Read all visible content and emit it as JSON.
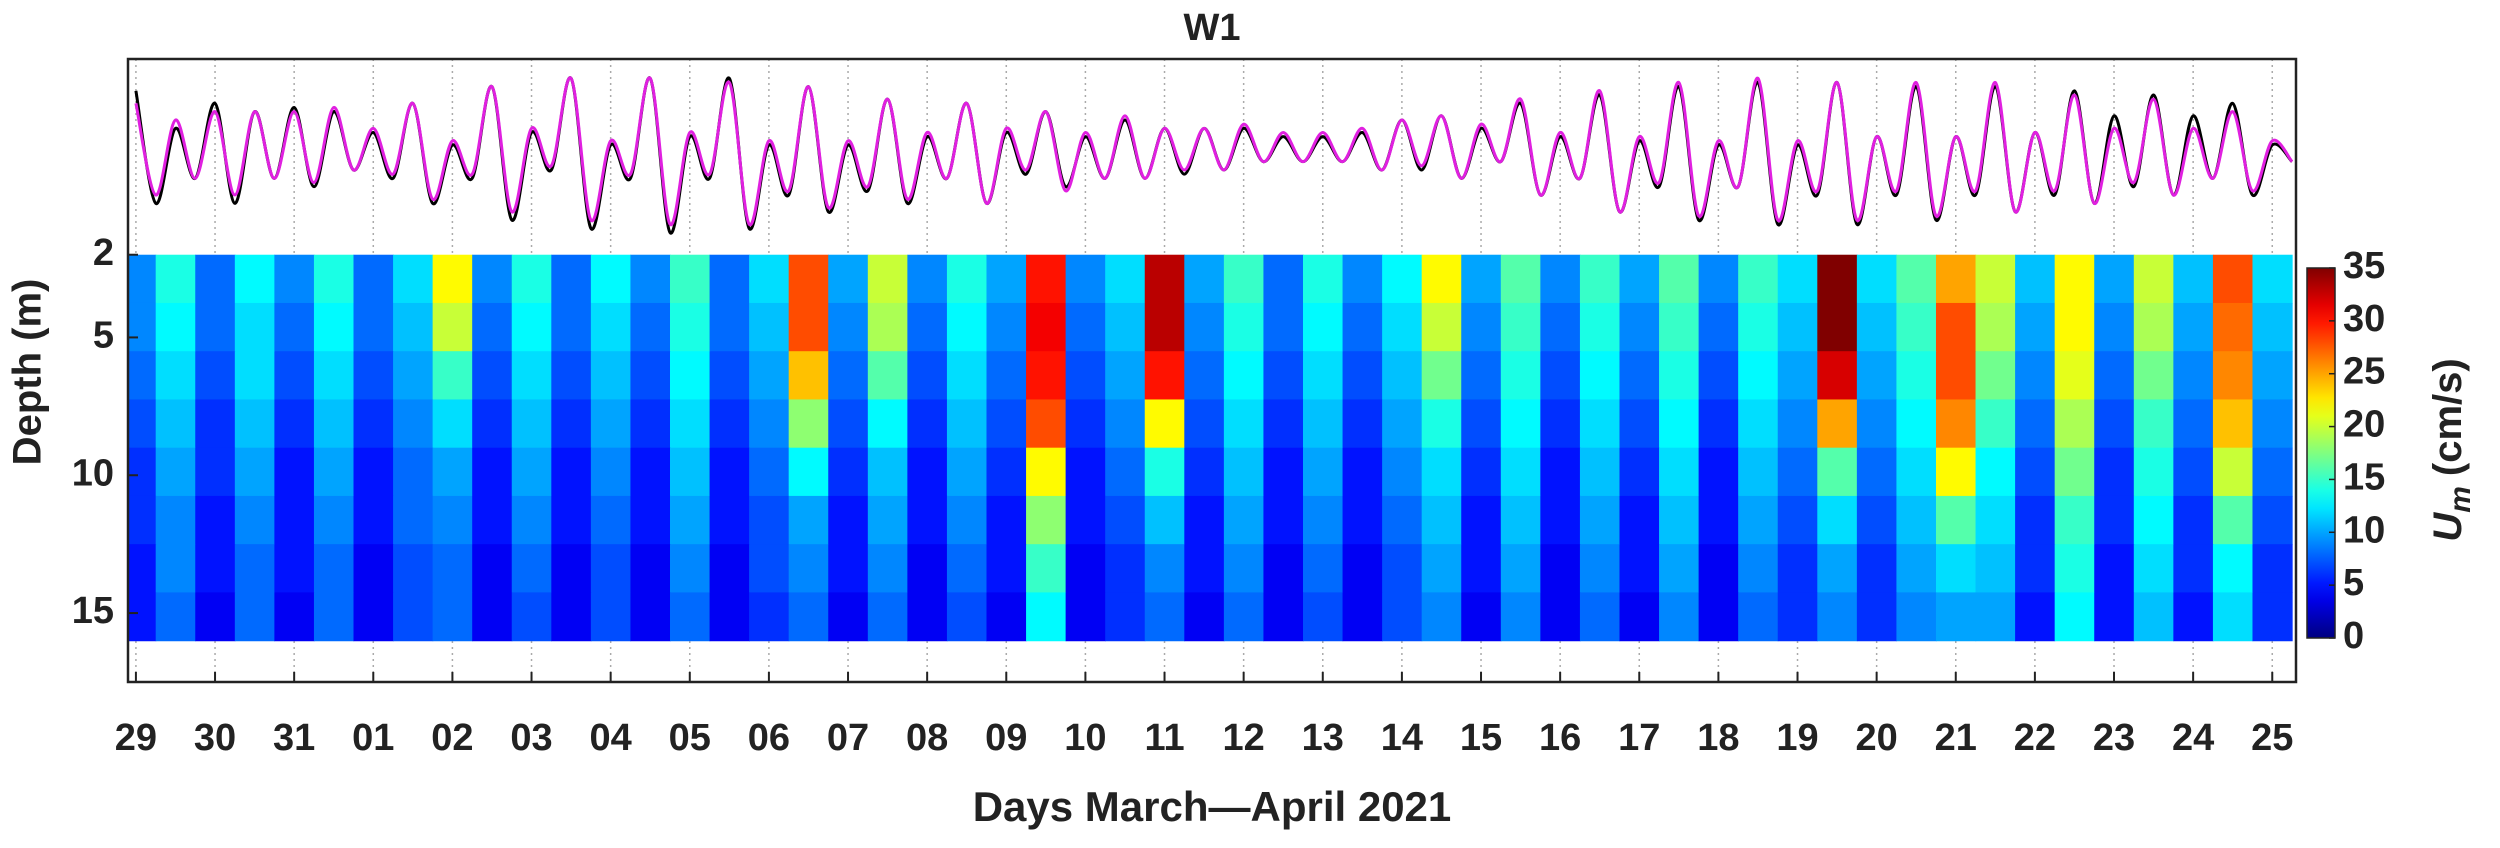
{
  "chart_data": [
    {
      "type": "line",
      "title": "W1",
      "x": [
        0,
        0.25,
        0.5,
        0.75,
        1,
        1.25,
        1.5,
        1.75,
        2,
        2.25,
        2.5,
        2.75,
        3,
        3.25,
        3.5,
        3.75,
        4,
        4.25,
        4.5,
        4.75,
        5,
        5.25,
        5.5,
        5.75,
        6,
        6.25,
        6.5,
        6.75,
        7,
        7.25,
        7.5,
        7.75,
        8,
        8.25,
        8.5,
        8.75,
        9,
        9.25,
        9.5,
        9.75,
        10,
        10.25,
        10.5,
        10.75,
        11,
        11.25,
        11.5,
        11.75,
        12,
        12.25,
        12.5,
        12.75,
        13,
        13.25,
        13.5,
        13.75,
        14,
        14.25,
        14.5,
        14.75,
        15,
        15.25,
        15.5,
        15.75,
        16,
        16.25,
        16.5,
        16.75,
        17,
        17.25,
        17.5,
        17.75,
        18,
        18.25,
        18.5,
        18.75,
        19,
        19.25,
        19.5,
        19.75,
        20,
        20.25,
        20.5,
        20.75,
        21,
        21.25,
        21.5,
        21.75,
        22,
        22.25,
        22.5,
        22.75,
        23,
        23.25,
        23.5,
        23.75,
        24,
        24.25,
        24.5,
        24.75,
        25,
        25.25,
        25.5,
        25.75,
        26,
        26.25,
        26.5,
        26.75,
        27,
        27.25
      ],
      "xlim": [
        -0.1,
        27.3
      ],
      "ylim": [
        -1.1,
        1.0
      ],
      "series": [
        {
          "color": "#000000",
          "values": [
            0.75,
            -0.6,
            0.3,
            -0.3,
            0.6,
            -0.6,
            0.5,
            -0.3,
            0.55,
            -0.4,
            0.5,
            -0.2,
            0.25,
            -0.3,
            0.6,
            -0.6,
            0.1,
            -0.3,
            0.8,
            -0.8,
            0.25,
            -0.2,
            0.9,
            -0.9,
            0.1,
            -0.3,
            0.9,
            -0.95,
            0.2,
            -0.3,
            0.9,
            -0.9,
            0.1,
            -0.5,
            0.8,
            -0.7,
            0.1,
            -0.45,
            0.65,
            -0.6,
            0.2,
            -0.3,
            0.6,
            -0.6,
            0.25,
            -0.25,
            0.5,
            -0.4,
            0.2,
            -0.3,
            0.4,
            -0.3,
            0.3,
            -0.25,
            0.3,
            -0.2,
            0.3,
            -0.1,
            0.2,
            -0.1,
            0.2,
            -0.1,
            0.25,
            -0.2,
            0.4,
            -0.2,
            0.45,
            -0.3,
            0.3,
            -0.1,
            0.6,
            -0.5,
            0.2,
            -0.3,
            0.7,
            -0.7,
            0.15,
            -0.4,
            0.8,
            -0.8,
            0.1,
            -0.4,
            0.85,
            -0.85,
            0.1,
            -0.5,
            0.85,
            -0.85,
            0.2,
            -0.5,
            0.8,
            -0.8,
            0.2,
            -0.5,
            0.8,
            -0.7,
            0.25,
            -0.5,
            0.75,
            -0.6,
            0.45,
            -0.4,
            0.7,
            -0.5,
            0.45,
            -0.3,
            0.6,
            -0.5,
            0.1,
            -0.1
          ]
        },
        {
          "color": "#e020e0",
          "values": [
            0.6,
            -0.5,
            0.4,
            -0.3,
            0.5,
            -0.5,
            0.5,
            -0.3,
            0.5,
            -0.35,
            0.55,
            -0.2,
            0.3,
            -0.25,
            0.6,
            -0.55,
            0.15,
            -0.25,
            0.8,
            -0.7,
            0.3,
            -0.15,
            0.9,
            -0.8,
            0.15,
            -0.25,
            0.9,
            -0.85,
            0.25,
            -0.25,
            0.85,
            -0.85,
            0.15,
            -0.45,
            0.8,
            -0.65,
            0.15,
            -0.4,
            0.65,
            -0.55,
            0.25,
            -0.3,
            0.6,
            -0.6,
            0.3,
            -0.2,
            0.5,
            -0.45,
            0.25,
            -0.3,
            0.45,
            -0.3,
            0.3,
            -0.2,
            0.3,
            -0.2,
            0.35,
            -0.1,
            0.25,
            -0.1,
            0.25,
            -0.1,
            0.3,
            -0.2,
            0.4,
            -0.15,
            0.45,
            -0.3,
            0.35,
            -0.1,
            0.65,
            -0.5,
            0.25,
            -0.3,
            0.75,
            -0.7,
            0.2,
            -0.35,
            0.85,
            -0.75,
            0.15,
            -0.4,
            0.9,
            -0.8,
            0.15,
            -0.45,
            0.85,
            -0.8,
            0.2,
            -0.45,
            0.85,
            -0.75,
            0.2,
            -0.45,
            0.85,
            -0.7,
            0.25,
            -0.45,
            0.7,
            -0.6,
            0.3,
            -0.35,
            0.65,
            -0.5,
            0.3,
            -0.3,
            0.5,
            -0.45,
            0.15,
            -0.1
          ]
        }
      ]
    },
    {
      "type": "heatmap",
      "colormap": "jet",
      "x": [
        0,
        0.5,
        1,
        1.5,
        2,
        2.5,
        3,
        3.5,
        4,
        4.5,
        5,
        5.5,
        6,
        6.5,
        7,
        7.5,
        8,
        8.5,
        9,
        9.5,
        10,
        10.5,
        11,
        11.5,
        12,
        12.5,
        13,
        13.5,
        14,
        14.5,
        15,
        15.5,
        16,
        16.5,
        17,
        17.5,
        18,
        18.5,
        19,
        19.5,
        20,
        20.5,
        21,
        21.5,
        22,
        22.5,
        23,
        23.5,
        24,
        24.5,
        25,
        25.5,
        26,
        26.5,
        27
      ],
      "y": [
        2.875,
        4.625,
        6.375,
        8.125,
        9.875,
        11.625,
        13.375,
        15.125
      ],
      "z": [
        [
          9,
          14,
          8,
          13,
          9,
          14,
          8,
          12,
          22,
          9,
          14,
          8,
          13,
          9,
          15,
          8,
          12,
          28,
          10,
          20,
          9,
          14,
          10,
          30,
          9,
          12,
          33,
          10,
          15,
          8,
          14,
          9,
          13,
          22,
          10,
          16,
          9,
          15,
          10,
          16,
          9,
          15,
          12,
          35,
          12,
          16,
          25,
          20,
          11,
          22,
          10,
          20,
          11,
          28,
          12
        ],
        [
          9,
          13,
          8,
          12,
          8,
          13,
          8,
          11,
          20,
          8,
          13,
          8,
          12,
          8,
          14,
          8,
          11,
          28,
          9,
          19,
          8,
          13,
          9,
          31,
          8,
          11,
          33,
          9,
          14,
          8,
          13,
          8,
          12,
          20,
          9,
          15,
          8,
          14,
          9,
          15,
          8,
          14,
          11,
          35,
          11,
          15,
          28,
          19,
          10,
          22,
          9,
          19,
          10,
          27,
          11
        ],
        [
          8,
          12,
          7,
          12,
          7,
          12,
          7,
          10,
          15,
          7,
          12,
          7,
          11,
          7,
          13,
          7,
          10,
          24,
          8,
          16,
          7,
          12,
          8,
          30,
          7,
          10,
          30,
          8,
          13,
          7,
          12,
          7,
          11,
          17,
          8,
          14,
          7,
          13,
          8,
          14,
          7,
          13,
          10,
          32,
          10,
          14,
          28,
          17,
          9,
          21,
          8,
          17,
          9,
          26,
          10
        ],
        [
          7,
          11,
          6,
          11,
          6,
          11,
          6,
          9,
          12,
          6,
          11,
          6,
          10,
          6,
          12,
          6,
          9,
          18,
          7,
          13,
          6,
          11,
          7,
          28,
          6,
          9,
          22,
          7,
          12,
          6,
          11,
          6,
          10,
          14,
          7,
          13,
          6,
          12,
          7,
          13,
          6,
          12,
          9,
          25,
          9,
          13,
          26,
          15,
          8,
          19,
          7,
          15,
          8,
          24,
          9
        ],
        [
          6,
          10,
          6,
          10,
          5,
          10,
          5,
          8,
          10,
          5,
          10,
          5,
          9,
          5,
          11,
          5,
          8,
          13,
          6,
          11,
          5,
          10,
          6,
          22,
          5,
          8,
          14,
          6,
          11,
          5,
          10,
          5,
          9,
          12,
          6,
          12,
          5,
          11,
          6,
          12,
          5,
          11,
          8,
          16,
          8,
          12,
          22,
          13,
          7,
          17,
          6,
          14,
          7,
          20,
          8
        ],
        [
          6,
          9,
          5,
          9,
          5,
          9,
          5,
          8,
          9,
          5,
          9,
          5,
          8,
          5,
          10,
          5,
          7,
          10,
          5,
          10,
          5,
          9,
          5,
          18,
          5,
          7,
          11,
          5,
          10,
          5,
          9,
          5,
          8,
          11,
          5,
          11,
          5,
          10,
          5,
          11,
          5,
          10,
          7,
          12,
          7,
          11,
          16,
          12,
          6,
          15,
          6,
          13,
          6,
          16,
          7
        ],
        [
          5,
          9,
          5,
          8,
          5,
          8,
          4,
          7,
          8,
          4,
          8,
          4,
          7,
          4,
          9,
          4,
          7,
          9,
          5,
          9,
          4,
          8,
          5,
          15,
          4,
          6,
          9,
          5,
          9,
          4,
          8,
          4,
          7,
          10,
          5,
          10,
          4,
          9,
          5,
          10,
          4,
          9,
          6,
          10,
          6,
          10,
          12,
          11,
          6,
          14,
          5,
          12,
          6,
          13,
          6
        ],
        [
          5,
          8,
          4,
          8,
          4,
          8,
          4,
          7,
          8,
          4,
          7,
          4,
          7,
          4,
          8,
          4,
          6,
          8,
          4,
          8,
          4,
          7,
          4,
          13,
          4,
          6,
          8,
          4,
          8,
          4,
          7,
          4,
          7,
          9,
          4,
          9,
          4,
          8,
          4,
          9,
          4,
          8,
          6,
          9,
          6,
          9,
          10,
          10,
          5,
          13,
          5,
          11,
          5,
          12,
          6
        ]
      ],
      "xlim": [
        -0.1,
        27.3
      ],
      "xticks": [
        {
          "value": 0,
          "label": "29"
        },
        {
          "value": 1,
          "label": "30"
        },
        {
          "value": 2,
          "label": "31"
        },
        {
          "value": 3,
          "label": "01"
        },
        {
          "value": 4,
          "label": "02"
        },
        {
          "value": 5,
          "label": "03"
        },
        {
          "value": 6,
          "label": "04"
        },
        {
          "value": 7,
          "label": "05"
        },
        {
          "value": 8,
          "label": "06"
        },
        {
          "value": 9,
          "label": "07"
        },
        {
          "value": 10,
          "label": "08"
        },
        {
          "value": 11,
          "label": "09"
        },
        {
          "value": 12,
          "label": "10"
        },
        {
          "value": 13,
          "label": "11"
        },
        {
          "value": 14,
          "label": "12"
        },
        {
          "value": 15,
          "label": "13"
        },
        {
          "value": 16,
          "label": "14"
        },
        {
          "value": 17,
          "label": "15"
        },
        {
          "value": 18,
          "label": "16"
        },
        {
          "value": 19,
          "label": "17"
        },
        {
          "value": 20,
          "label": "18"
        },
        {
          "value": 21,
          "label": "19"
        },
        {
          "value": 22,
          "label": "20"
        },
        {
          "value": 23,
          "label": "21"
        },
        {
          "value": 24,
          "label": "22"
        },
        {
          "value": 25,
          "label": "23"
        },
        {
          "value": 26,
          "label": "24"
        },
        {
          "value": 27,
          "label": "25"
        }
      ],
      "xlabel": "Days March—April 2021",
      "ylim": [
        17.5,
        -5.1
      ],
      "yticks": [
        2,
        5,
        10,
        15
      ],
      "ylabel": "Depth (m)",
      "grid": true,
      "colorbar": {
        "lim": [
          0,
          35
        ],
        "ticks": [
          0,
          5,
          10,
          15,
          20,
          25,
          30,
          35
        ],
        "label_symbol": "U",
        "label_subscript": "m",
        "label_unit": "(cm/s)"
      }
    }
  ]
}
